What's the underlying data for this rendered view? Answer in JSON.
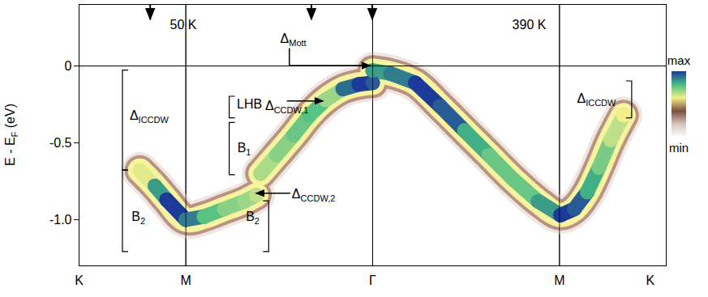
{
  "chart_data": {
    "type": "band_map",
    "y_label": {
      "text": "E - E",
      "sub": "F",
      "after": " (eV)"
    },
    "xlim": [
      0,
      5.5
    ],
    "xticks": [
      {
        "value": 0,
        "label": "K"
      },
      {
        "value": 1,
        "label": "M"
      },
      {
        "value": 2.75,
        "label": "Γ"
      },
      {
        "value": 4.5,
        "label": "M"
      },
      {
        "value": 5.35,
        "label": "K"
      }
    ],
    "ylim": [
      -1.3,
      0.4
    ],
    "yticks": [
      {
        "value": -1,
        "label": "-1.0"
      },
      -0.5,
      0
    ],
    "vlines": [
      1,
      2.75,
      4.5
    ],
    "hlines": [
      0
    ],
    "top_arrows": [
      0.67,
      2.18,
      2.75
    ],
    "series": [
      {
        "x": [
          0.57,
          0.71,
          0.82,
          1.0,
          1.17,
          1.36,
          1.55,
          1.66,
          1.68,
          1.7,
          1.85,
          2.01,
          2.16,
          2.31,
          2.47,
          2.62,
          2.75
        ],
        "values": [
          -0.68,
          -0.78,
          -0.87,
          -1.0,
          -0.98,
          -0.93,
          -0.88,
          -0.84,
          null,
          -0.7,
          -0.58,
          -0.45,
          -0.32,
          -0.22,
          -0.15,
          -0.12,
          -0.11
        ],
        "intensity": [
          0.62,
          0.85,
          1.0,
          0.9,
          0.78,
          0.72,
          0.7,
          0.66,
          null,
          0.68,
          0.72,
          0.76,
          0.78,
          0.7,
          0.92,
          1.0,
          0.95
        ]
      },
      {
        "x": [
          2.75,
          2.92,
          3.15,
          3.38,
          3.61,
          3.84,
          4.07,
          4.3,
          4.51,
          4.64,
          4.76,
          4.87,
          4.98,
          5.1
        ],
        "values": [
          -0.03,
          -0.05,
          -0.11,
          -0.26,
          -0.42,
          -0.58,
          -0.74,
          -0.88,
          -0.97,
          -0.93,
          -0.82,
          -0.66,
          -0.48,
          -0.32
        ],
        "intensity": [
          0.85,
          0.9,
          1.0,
          0.95,
          0.82,
          0.76,
          0.76,
          0.85,
          1.0,
          0.95,
          0.82,
          0.74,
          0.66,
          0.6
        ]
      }
    ],
    "annotations": [
      {
        "text": "50 K",
        "x": 0.98,
        "y": 0.26
      },
      {
        "text": "390 K",
        "x": 4.22,
        "y": 0.26
      },
      {
        "text": "Δ",
        "sub": "Mott",
        "x": 2.01,
        "y": 0.17,
        "arrow_to": [
          2.73,
          0.0
        ]
      },
      {
        "text": "LHB",
        "x": 1.6,
        "y": -0.26,
        "bracket": {
          "x": 1.41,
          "y": [
            -0.2,
            -0.34
          ],
          "side": "left"
        }
      },
      {
        "text": "B",
        "sub": "1",
        "x": 1.55,
        "y": -0.54,
        "bracket": {
          "x": 1.41,
          "y": [
            -0.37,
            -0.71
          ],
          "side": "left"
        }
      },
      {
        "text": "Δ",
        "sub": "CCDW,1",
        "x": 1.95,
        "y": -0.27,
        "arrow_to": [
          2.29,
          -0.23
        ]
      },
      {
        "text": "Δ",
        "sub": "CCDW,2",
        "x": 2.2,
        "y": -0.84,
        "arrow_to": [
          1.66,
          -0.83
        ]
      },
      {
        "text": "Δ",
        "sub": "ICCDW",
        "x": 0.66,
        "y": -0.33,
        "bracket": {
          "x": 0.41,
          "y": [
            -0.03,
            -0.68
          ],
          "side": "left"
        }
      },
      {
        "text": "B",
        "sub": "2",
        "x": 0.56,
        "y": -0.99,
        "bracket": {
          "x": 0.41,
          "y": [
            -0.68,
            -1.21
          ],
          "side": "left"
        }
      },
      {
        "text": "B",
        "sub": "2",
        "x": 1.63,
        "y": -0.99,
        "bracket": {
          "x": 1.78,
          "y": [
            -0.88,
            -1.21
          ],
          "side": "right"
        }
      },
      {
        "text": "Δ",
        "sub": "ICCDW",
        "x": 4.85,
        "y": -0.22,
        "bracket": {
          "x": 5.18,
          "y": [
            -0.1,
            -0.34
          ],
          "side": "right"
        }
      }
    ],
    "colorbar": {
      "range": [
        0,
        1
      ],
      "colors": [
        "#ffffff",
        "#d9c7be",
        "#7b4f3f",
        "#f4ef8a",
        "#45bd82",
        "#1c3a9a"
      ],
      "max_label": "max",
      "min_label": "min"
    }
  }
}
